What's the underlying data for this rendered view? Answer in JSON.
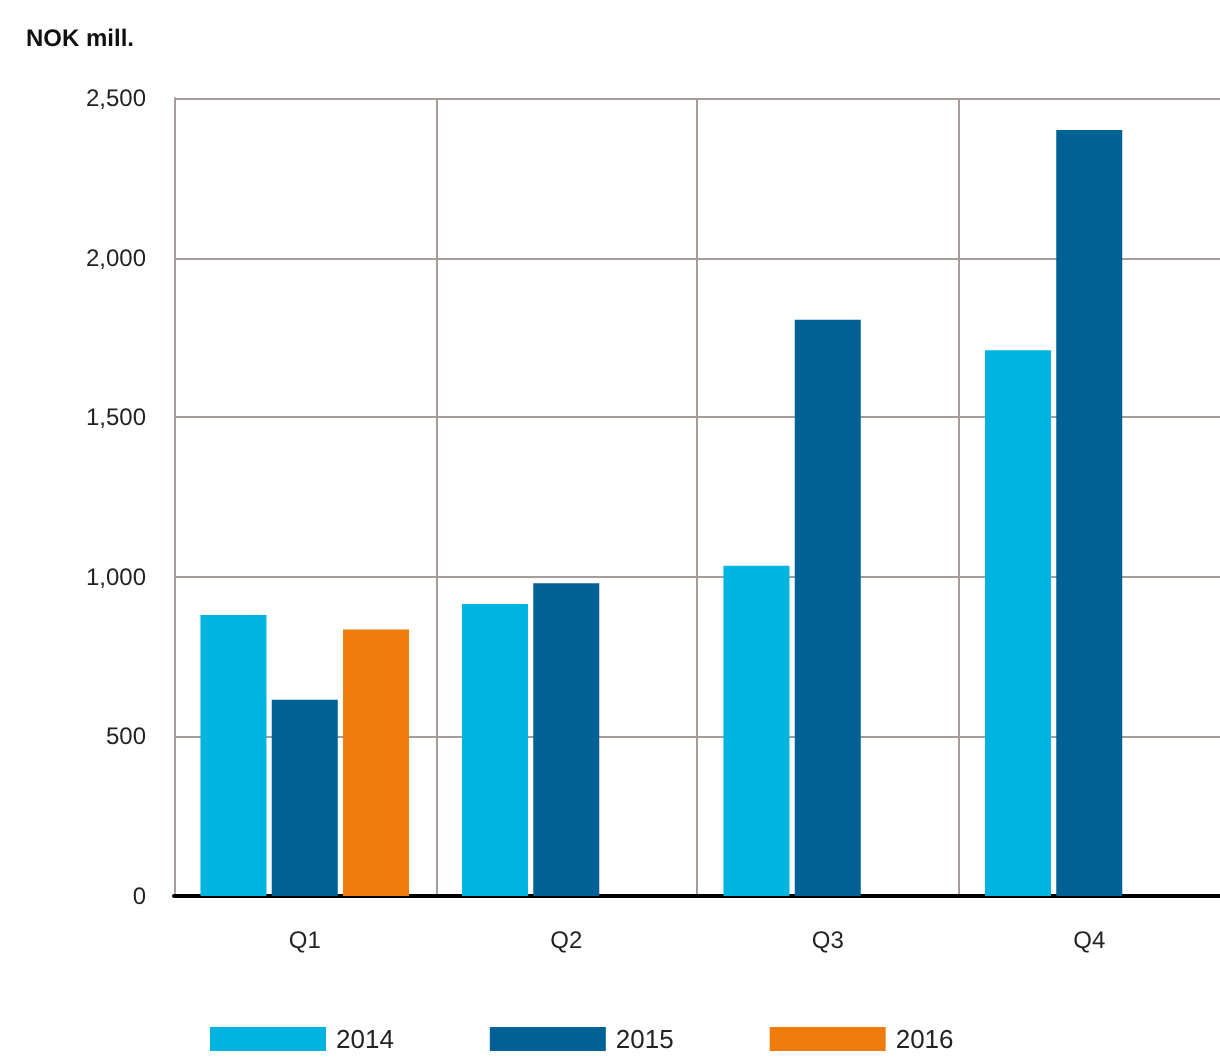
{
  "chart_data": {
    "type": "bar",
    "ylabel": "NOK mill.",
    "categories": [
      "Q1",
      "Q2",
      "Q3",
      "Q4"
    ],
    "series": [
      {
        "name": "2014",
        "color": "#00b4e0",
        "values": [
          880,
          915,
          1035,
          1710
        ]
      },
      {
        "name": "2015",
        "color": "#006195",
        "values": [
          615,
          980,
          1805,
          2400
        ]
      },
      {
        "name": "2016",
        "color": "#ee7d0e",
        "values": [
          835,
          null,
          null,
          null
        ]
      }
    ],
    "ylim": [
      0,
      2500
    ],
    "yticks": [
      0,
      500,
      {
        "value": 1000,
        "label": "1,000"
      },
      {
        "value": 1500,
        "label": "1,500"
      },
      {
        "value": 2000,
        "label": "2,000"
      },
      {
        "value": 2500,
        "label": "2,500"
      }
    ],
    "grid": true,
    "legend": "bottom"
  }
}
